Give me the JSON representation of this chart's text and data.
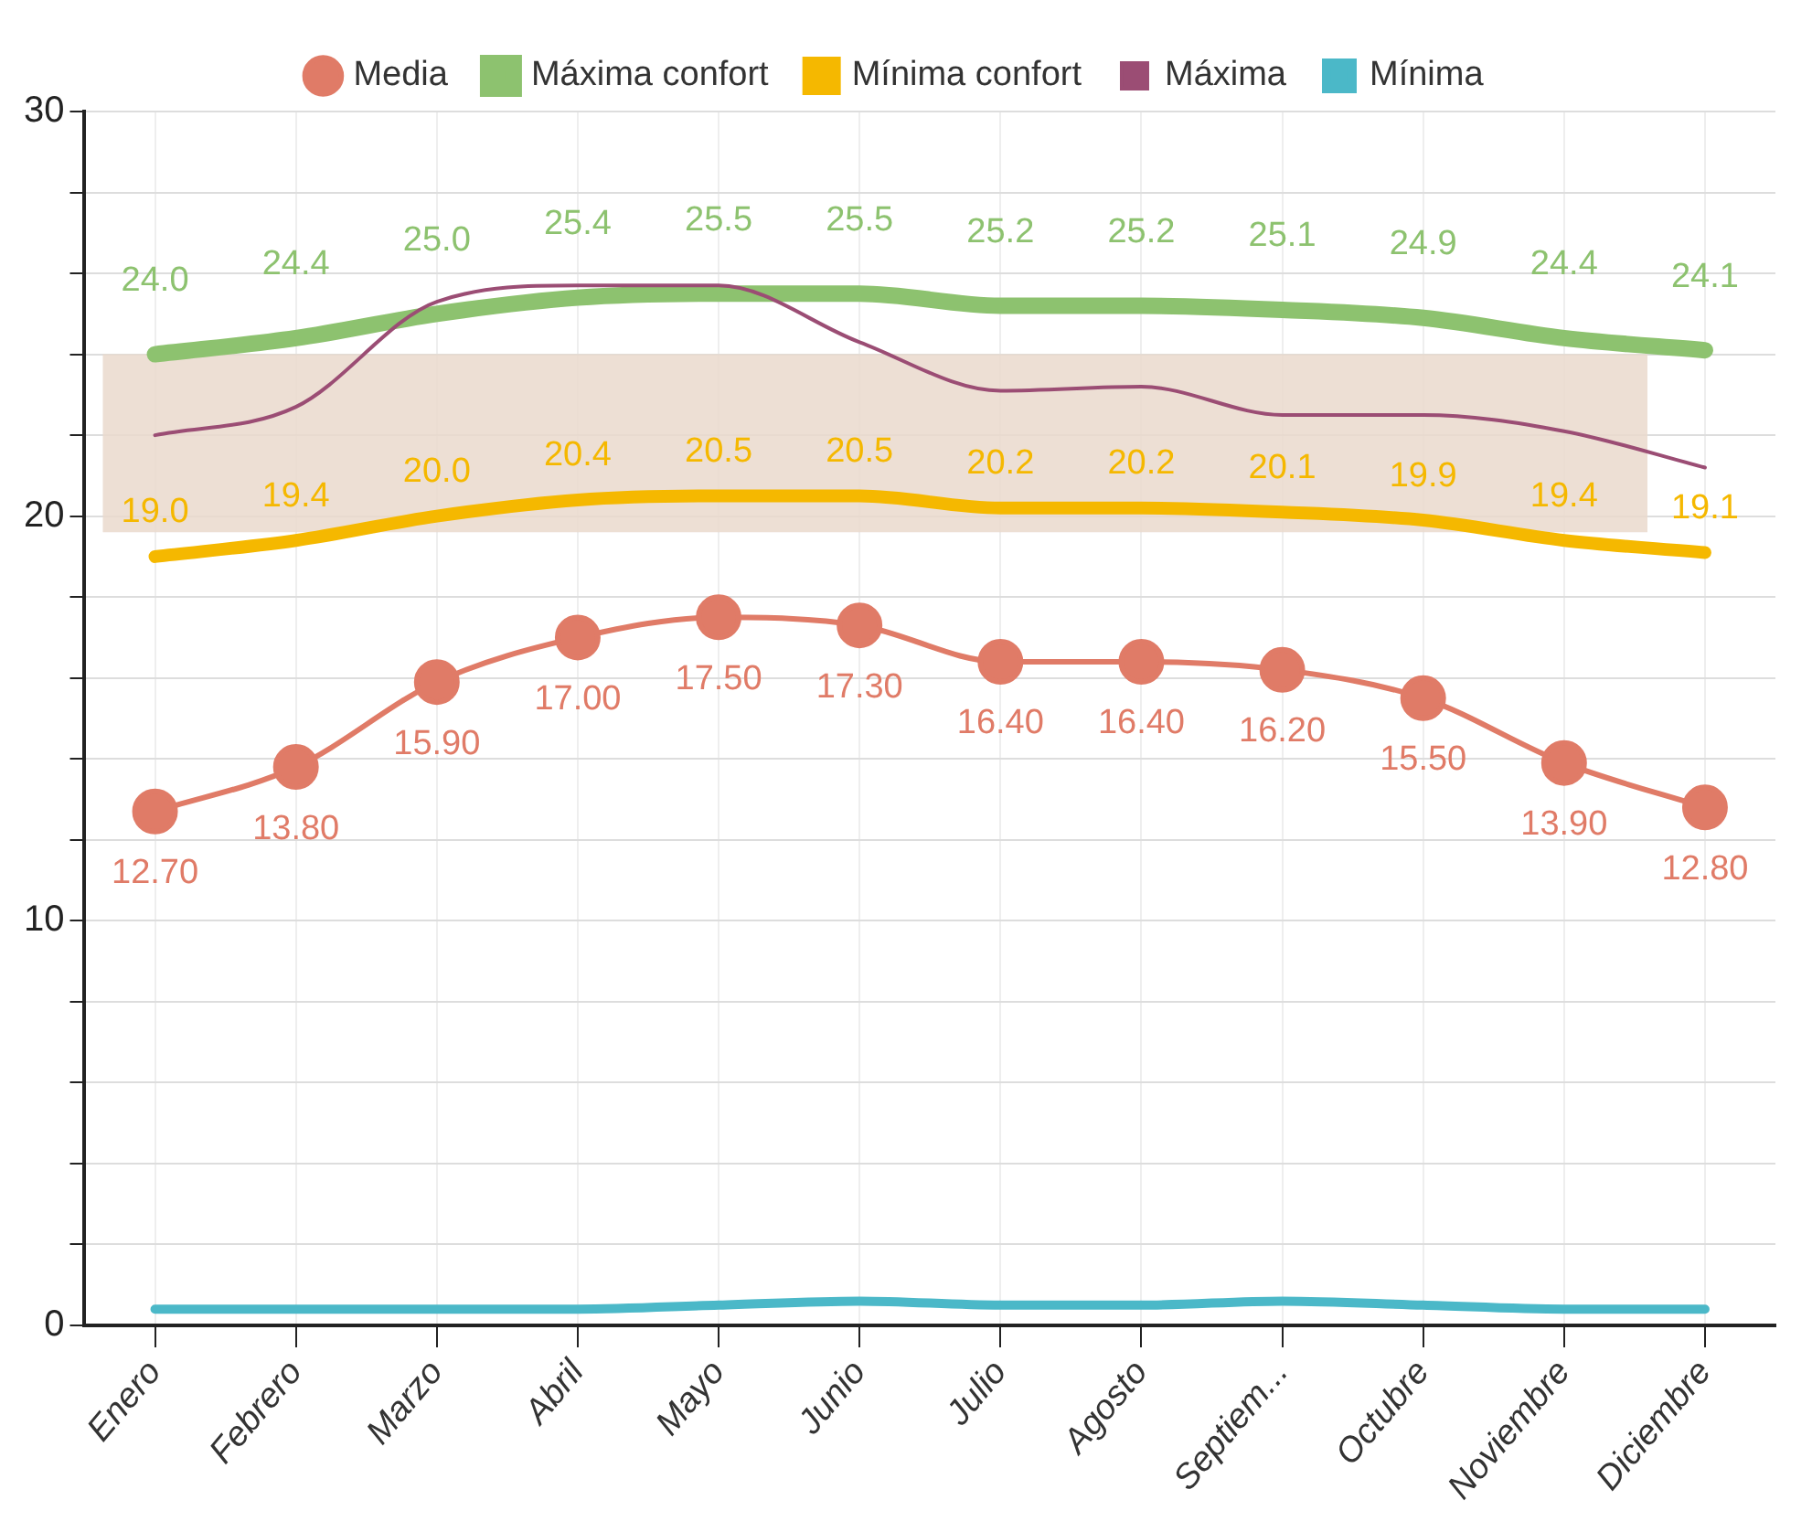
{
  "chart_data": {
    "type": "line",
    "categories": [
      "Enero",
      "Febrero",
      "Marzo",
      "Abril",
      "Mayo",
      "Junio",
      "Julio",
      "Agosto",
      "Septiem...",
      "Octubre",
      "Noviembre",
      "Diciembre"
    ],
    "series": [
      {
        "name": "Media",
        "color": "#e07b67",
        "marker": "circle",
        "values": [
          12.7,
          13.8,
          15.9,
          17.0,
          17.5,
          17.3,
          16.4,
          16.4,
          16.2,
          15.5,
          13.9,
          12.8
        ],
        "value_labels": [
          "12.70",
          "13.80",
          "15.90",
          "17.00",
          "17.50",
          "17.30",
          "16.40",
          "16.40",
          "16.20",
          "15.50",
          "13.90",
          "12.80"
        ]
      },
      {
        "name": "Máxima confort",
        "color": "#8dc26f",
        "marker": "none",
        "values": [
          24.0,
          24.4,
          25.0,
          25.4,
          25.5,
          25.5,
          25.2,
          25.2,
          25.1,
          24.9,
          24.4,
          24.1
        ],
        "value_labels": [
          "24.0",
          "24.4",
          "25.0",
          "25.4",
          "25.5",
          "25.5",
          "25.2",
          "25.2",
          "25.1",
          "24.9",
          "24.4",
          "24.1"
        ]
      },
      {
        "name": "Mínima confort",
        "color": "#f5b800",
        "marker": "none",
        "values": [
          19.0,
          19.4,
          20.0,
          20.4,
          20.5,
          20.5,
          20.2,
          20.2,
          20.1,
          19.9,
          19.4,
          19.1
        ],
        "value_labels": [
          "19.0",
          "19.4",
          "20.0",
          "20.4",
          "20.5",
          "20.5",
          "20.2",
          "20.2",
          "20.1",
          "19.9",
          "19.4",
          "19.1"
        ]
      },
      {
        "name": "Máxima",
        "color": "#9b4d74",
        "marker": "none",
        "values": [
          22.0,
          22.7,
          25.3,
          25.7,
          25.7,
          24.3,
          23.1,
          23.2,
          22.5,
          22.5,
          22.1,
          21.2
        ]
      },
      {
        "name": "Mínima",
        "color": "#4bb8c8",
        "marker": "none",
        "values": [
          0.4,
          0.4,
          0.4,
          0.4,
          0.5,
          0.6,
          0.5,
          0.5,
          0.6,
          0.5,
          0.4,
          0.4
        ]
      }
    ],
    "ylim": [
      0,
      30
    ],
    "yticks": [
      0,
      {
        "value": 2,
        "label": null
      },
      {
        "value": 4,
        "label": null
      },
      {
        "value": 6,
        "label": null
      },
      {
        "value": 8,
        "label": null
      },
      10,
      {
        "value": 12,
        "label": null
      },
      {
        "value": 14,
        "label": null
      },
      {
        "value": 16,
        "label": null
      },
      {
        "value": 18,
        "label": null
      },
      20,
      {
        "value": 22,
        "label": null
      },
      {
        "value": 24,
        "label": null
      },
      {
        "value": 26,
        "label": null
      },
      {
        "value": 28,
        "label": null
      },
      30
    ],
    "bands": [
      {
        "axis": "y",
        "from": 19.6,
        "to": 24.0,
        "color": "#ead9cc"
      }
    ],
    "grid": true,
    "legend": "top"
  }
}
